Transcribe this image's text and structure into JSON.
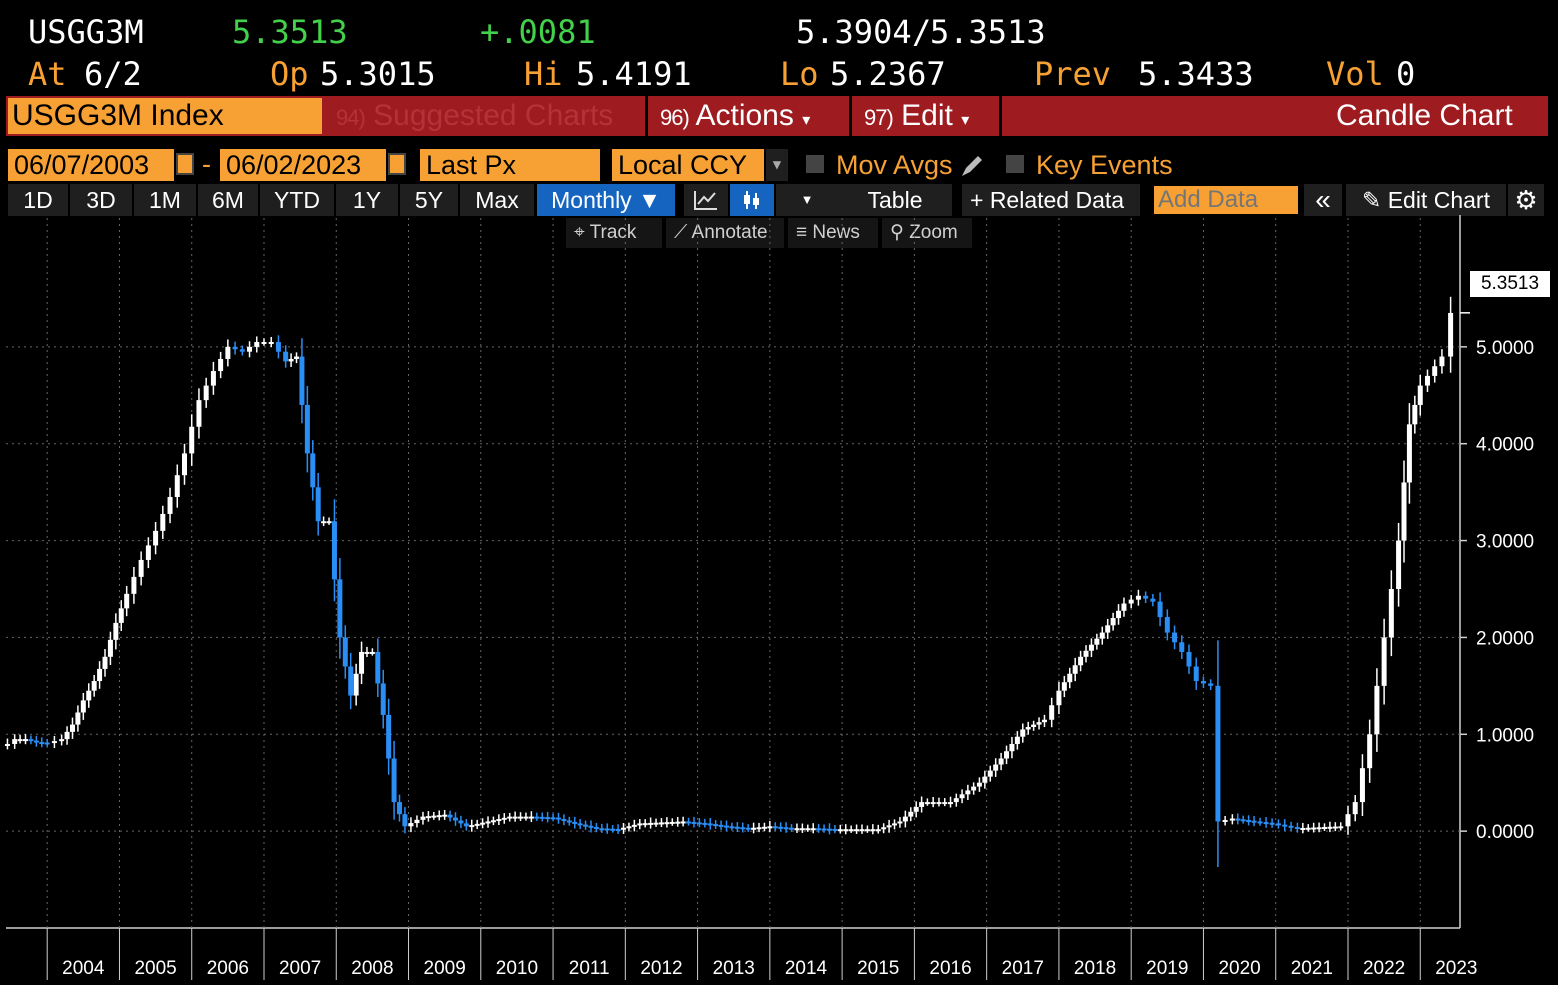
{
  "quote": {
    "ticker": "USGG3M",
    "last": "5.3513",
    "change": "+.0081",
    "bid_ask": "5.3904",
    "slash": "/",
    "bid_ask_2": "5.3513",
    "at_label": "At",
    "at_date": "6/2",
    "op_label": "Op",
    "op_value": "5.3015",
    "hi_label": "Hi",
    "hi_value": "5.4191",
    "lo_label": "Lo",
    "lo_value": "5.2367",
    "prev_label": "Prev",
    "prev_value": "5.3433",
    "vol_label": "Vol",
    "vol_value": "0"
  },
  "menu": {
    "security": "USGG3M Index",
    "suggested_num": "94)",
    "suggested": "Suggested Charts",
    "actions_num": "96)",
    "actions": "Actions",
    "edit_num": "97)",
    "edit": "Edit",
    "caret": "▾",
    "chart_type": "Candle Chart"
  },
  "controls": {
    "start_date": "06/07/2003",
    "dash": "-",
    "end_date": "06/02/2023",
    "field": "Last Px",
    "currency": "Local CCY",
    "mov_avgs": "Mov Avgs",
    "key_events": "Key Events"
  },
  "toolbar": {
    "periods": [
      "1D",
      "3D",
      "1M",
      "6M",
      "YTD",
      "1Y",
      "5Y",
      "Max"
    ],
    "frequency": "Monthly ▼",
    "table": "Table",
    "related": "+ Related Data",
    "add_data_placeholder": "Add Data",
    "collapse": "«",
    "edit_chart": "✎ Edit Chart",
    "settings": "⚙"
  },
  "tools": {
    "track": "⌖ Track",
    "annotate": "⟋ Annotate",
    "news": "≡ News",
    "zoom": "⚲ Zoom"
  },
  "colors": {
    "orange": "#f7a135",
    "green": "#43d04a",
    "menu_red": "#9e1b1f",
    "up_candle": "#ffffff",
    "down_candle": "#2a8ef5",
    "selected_blue": "#1565c0"
  },
  "chart_data": {
    "type": "candlestick",
    "title": "",
    "xlabel": "",
    "ylabel": "",
    "frequency": "monthly",
    "ylim": [
      -1.0,
      6.0
    ],
    "yticks": [
      "0.0000",
      "1.0000",
      "2.0000",
      "3.0000",
      "4.0000",
      "5.0000"
    ],
    "xticks": [
      "2004",
      "2005",
      "2006",
      "2007",
      "2008",
      "2009",
      "2010",
      "2011",
      "2012",
      "2013",
      "2014",
      "2015",
      "2016",
      "2017",
      "2018",
      "2019",
      "2020",
      "2021",
      "2022",
      "2023"
    ],
    "last_value_label": "5.3513",
    "grid": "dotted",
    "series": [
      {
        "points": [
          [
            2003.45,
            0.9
          ],
          [
            2003.55,
            0.95
          ],
          [
            2003.7,
            0.95
          ],
          [
            2003.85,
            0.92
          ],
          [
            2004.0,
            0.91
          ],
          [
            2004.2,
            0.95
          ],
          [
            2004.35,
            1.1
          ],
          [
            2004.5,
            1.35
          ],
          [
            2004.65,
            1.55
          ],
          [
            2004.8,
            1.8
          ],
          [
            2004.95,
            2.15
          ],
          [
            2005.1,
            2.45
          ],
          [
            2005.3,
            2.8
          ],
          [
            2005.5,
            3.1
          ],
          [
            2005.7,
            3.45
          ],
          [
            2005.9,
            3.9
          ],
          [
            2006.1,
            4.45
          ],
          [
            2006.3,
            4.75
          ],
          [
            2006.5,
            5.0
          ],
          [
            2006.7,
            4.95
          ],
          [
            2006.9,
            5.05
          ],
          [
            2007.1,
            5.05
          ],
          [
            2007.3,
            4.85
          ],
          [
            2007.45,
            4.9
          ],
          [
            2007.6,
            3.9
          ],
          [
            2007.75,
            3.2
          ],
          [
            2007.9,
            3.2
          ],
          [
            2008.05,
            2.0
          ],
          [
            2008.2,
            1.4
          ],
          [
            2008.35,
            1.85
          ],
          [
            2008.5,
            1.85
          ],
          [
            2008.65,
            1.2
          ],
          [
            2008.8,
            0.3
          ],
          [
            2008.95,
            0.05
          ],
          [
            2009.2,
            0.15
          ],
          [
            2009.5,
            0.17
          ],
          [
            2009.8,
            0.05
          ],
          [
            2010.1,
            0.1
          ],
          [
            2010.4,
            0.15
          ],
          [
            2010.7,
            0.15
          ],
          [
            2011.0,
            0.14
          ],
          [
            2011.3,
            0.08
          ],
          [
            2011.6,
            0.03
          ],
          [
            2011.9,
            0.02
          ],
          [
            2012.2,
            0.08
          ],
          [
            2012.5,
            0.09
          ],
          [
            2012.8,
            0.1
          ],
          [
            2013.1,
            0.08
          ],
          [
            2013.4,
            0.05
          ],
          [
            2013.7,
            0.03
          ],
          [
            2014.0,
            0.05
          ],
          [
            2014.3,
            0.03
          ],
          [
            2014.6,
            0.03
          ],
          [
            2014.9,
            0.02
          ],
          [
            2015.2,
            0.02
          ],
          [
            2015.5,
            0.02
          ],
          [
            2015.8,
            0.1
          ],
          [
            2016.1,
            0.3
          ],
          [
            2016.5,
            0.3
          ],
          [
            2016.9,
            0.5
          ],
          [
            2017.2,
            0.75
          ],
          [
            2017.5,
            1.05
          ],
          [
            2017.8,
            1.15
          ],
          [
            2018.0,
            1.45
          ],
          [
            2018.3,
            1.8
          ],
          [
            2018.6,
            2.05
          ],
          [
            2018.9,
            2.35
          ],
          [
            2019.1,
            2.43
          ],
          [
            2019.3,
            2.37
          ],
          [
            2019.5,
            2.05
          ],
          [
            2019.7,
            1.85
          ],
          [
            2019.9,
            1.55
          ],
          [
            2020.1,
            1.5
          ],
          [
            2020.2,
            0.1
          ],
          [
            2020.4,
            0.13
          ],
          [
            2020.7,
            0.1
          ],
          [
            2020.95,
            0.08
          ],
          [
            2021.3,
            0.03
          ],
          [
            2021.6,
            0.04
          ],
          [
            2021.9,
            0.05
          ],
          [
            2022.1,
            0.3
          ],
          [
            2022.3,
            1.0
          ],
          [
            2022.5,
            2.0
          ],
          [
            2022.7,
            3.0
          ],
          [
            2022.85,
            4.2
          ],
          [
            2023.0,
            4.6
          ],
          [
            2023.2,
            4.8
          ],
          [
            2023.3,
            4.9
          ],
          [
            2023.42,
            5.35
          ]
        ]
      }
    ]
  }
}
